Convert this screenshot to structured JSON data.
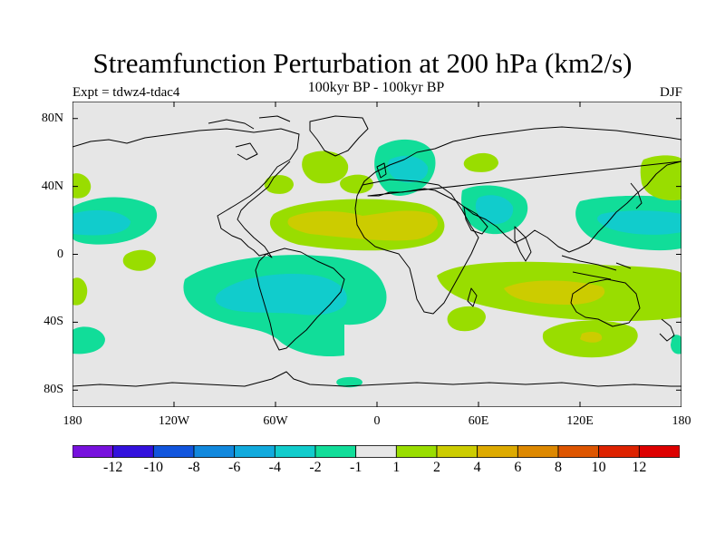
{
  "header": {
    "title": "Streamfunction Perturbation at 200 hPa (km2/s)",
    "subtitle": "100kyr BP - 100kyr BP",
    "left_label": "Expt = tdwz4-tdac4",
    "right_label": "DJF"
  },
  "map": {
    "projection": "cylindrical-equidistant",
    "lon_range": [
      -180,
      180
    ],
    "lat_range": [
      -90,
      90
    ],
    "y_ticks": [
      {
        "label": "80N",
        "lat": 80
      },
      {
        "label": "40N",
        "lat": 40
      },
      {
        "label": "0",
        "lat": 0
      },
      {
        "label": "40S",
        "lat": -40
      },
      {
        "label": "80S",
        "lat": -80
      }
    ],
    "x_ticks": [
      {
        "label": "180",
        "lon": -180
      },
      {
        "label": "120W",
        "lon": -120
      },
      {
        "label": "60W",
        "lon": -60
      },
      {
        "label": "0",
        "lon": 0
      },
      {
        "label": "60E",
        "lon": 60
      },
      {
        "label": "120E",
        "lon": 120
      },
      {
        "label": "180",
        "lon": 180
      }
    ],
    "background_color": "#e6e6e6"
  },
  "colorbar": {
    "colors": [
      "#7711dd",
      "#3311dd",
      "#1155dd",
      "#1188dd",
      "#11aadd",
      "#11cccc",
      "#11dd99",
      "#e6e6e6",
      "#99dd00",
      "#cccc00",
      "#ddaa00",
      "#dd8800",
      "#dd5500",
      "#dd2200",
      "#dd0000"
    ],
    "labels": [
      "-12",
      "-10",
      "-8",
      "-6",
      "-4",
      "-2",
      "-1",
      "1",
      "2",
      "4",
      "6",
      "8",
      "10",
      "12"
    ]
  }
}
